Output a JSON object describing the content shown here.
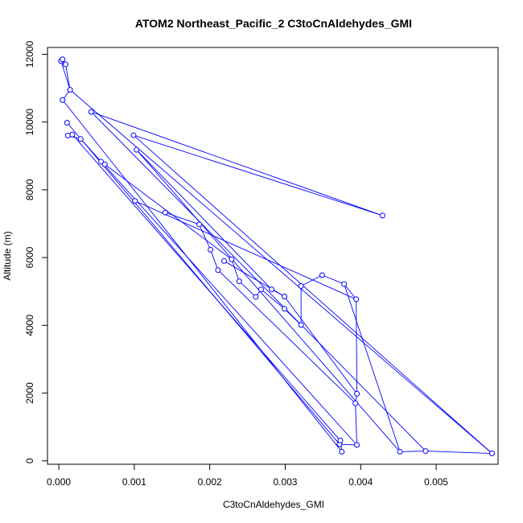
{
  "chart_data": {
    "type": "line",
    "title": "ATOM2 Northeast_Pacific_2 C3toCnAldehydes_GMI",
    "xlabel": "C3toCnAldehydes_GMI",
    "ylabel": "Altitude (m)",
    "xlim": [
      -0.00015,
      0.00582
    ],
    "ylim": [
      -100,
      12200
    ],
    "xticks": [
      0.0,
      0.001,
      0.002,
      0.003,
      0.004,
      0.005
    ],
    "xtick_labels": [
      "0.000",
      "0.001",
      "0.002",
      "0.003",
      "0.004",
      "0.005"
    ],
    "yticks": [
      0,
      2000,
      4000,
      6000,
      8000,
      10000,
      12000
    ],
    "ytick_labels": [
      "0",
      "2000",
      "4000",
      "6000",
      "8000",
      "10000",
      "12000"
    ],
    "grid": false,
    "series_color": "#0000ff",
    "markers": "open-circle",
    "x": [
      3e-05,
      5e-05,
      9e-05,
      0.00015,
      5e-05,
      0.00011,
      0.00012,
      0.00018,
      0.00029,
      0.00043,
      0.00056,
      0.00061,
      0.00099,
      0.00103,
      0.00101,
      0.00141,
      0.00186,
      0.00201,
      0.00211,
      0.00219,
      0.00229,
      0.00239,
      0.00261,
      0.00268,
      0.00282,
      0.00299,
      0.00299,
      0.00321,
      0.00321,
      0.00349,
      0.00378,
      0.00394,
      0.00429,
      0.00395,
      0.00393,
      0.00395,
      0.00372,
      0.00373,
      0.00375,
      0.00452,
      0.00486,
      0.00574
    ],
    "y": [
      11800,
      11850,
      11700,
      10950,
      10650,
      9980,
      9600,
      9630,
      9500,
      10300,
      8830,
      8750,
      9610,
      9180,
      7670,
      7330,
      6980,
      6230,
      5630,
      5900,
      5950,
      5300,
      4840,
      5060,
      5060,
      4490,
      4850,
      4010,
      5160,
      5480,
      5220,
      4770,
      7240,
      1980,
      1700,
      470,
      490,
      600,
      270,
      270,
      290,
      220
    ],
    "segments": [
      [
        0,
        3
      ],
      [
        1,
        2
      ],
      [
        2,
        3
      ],
      [
        3,
        4
      ],
      [
        4,
        38
      ],
      [
        5,
        36
      ],
      [
        6,
        8
      ],
      [
        7,
        37
      ],
      [
        8,
        35
      ],
      [
        9,
        32
      ],
      [
        10,
        11
      ],
      [
        11,
        20
      ],
      [
        12,
        32
      ],
      [
        13,
        24
      ],
      [
        14,
        31
      ],
      [
        15,
        16
      ],
      [
        16,
        17
      ],
      [
        18,
        34
      ],
      [
        19,
        26
      ],
      [
        20,
        21
      ],
      [
        21,
        22
      ],
      [
        22,
        23
      ],
      [
        23,
        25
      ],
      [
        24,
        26
      ],
      [
        25,
        27
      ],
      [
        27,
        28
      ],
      [
        28,
        29
      ],
      [
        29,
        30
      ],
      [
        30,
        31
      ],
      [
        31,
        33
      ],
      [
        33,
        34
      ],
      [
        34,
        35
      ],
      [
        35,
        36
      ],
      [
        36,
        37
      ],
      [
        37,
        38
      ],
      [
        39,
        40
      ],
      [
        40,
        41
      ],
      [
        41,
        3
      ],
      [
        12,
        41
      ],
      [
        13,
        39
      ],
      [
        9,
        40
      ],
      [
        17,
        18
      ],
      [
        26,
        33
      ],
      [
        30,
        39
      ]
    ]
  }
}
